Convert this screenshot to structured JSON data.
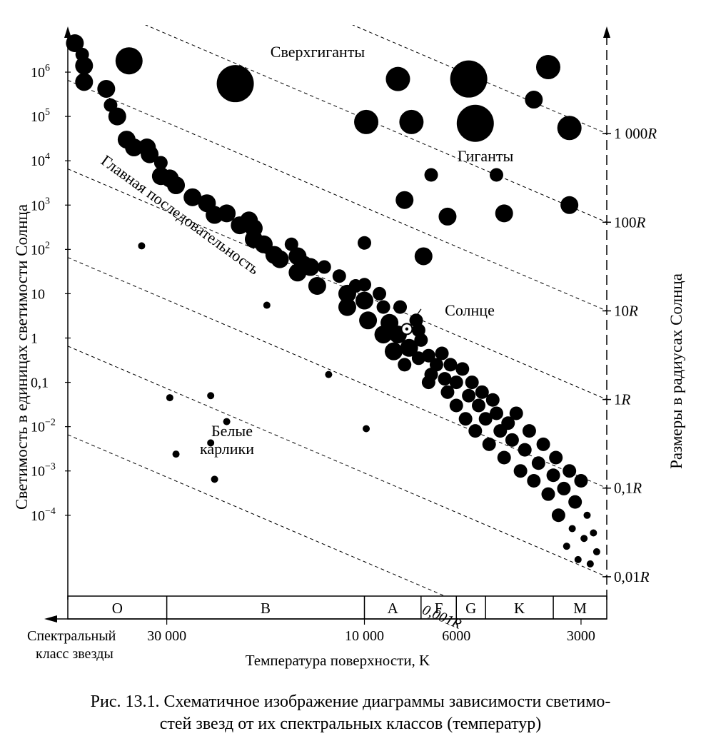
{
  "chart_data": {
    "type": "scatter",
    "ylabel": "Светимость в единицах светимости Солнца",
    "ylabel_right": "Размеры в радиусах Солнца",
    "xlabel": "Температура поверхности, K",
    "spectral_label_line1": "Спектральный",
    "spectral_label_line2": "класс звезды",
    "x_scale": "log, decreasing",
    "y_scale": "log",
    "xlim": [
      52000,
      2600
    ],
    "ylim": [
      1.5e-06,
      8000000
    ],
    "y_ticks": [
      {
        "value": 1000000,
        "label": "10",
        "sup": "6"
      },
      {
        "value": 100000,
        "label": "10",
        "sup": "5"
      },
      {
        "value": 10000,
        "label": "10",
        "sup": "4"
      },
      {
        "value": 1000,
        "label": "10",
        "sup": "3"
      },
      {
        "value": 100,
        "label": "10",
        "sup": "2"
      },
      {
        "value": 10,
        "label": "10",
        "sup": ""
      },
      {
        "value": 1,
        "label": "1",
        "sup": ""
      },
      {
        "value": 0.1,
        "label": "0,1",
        "sup": ""
      },
      {
        "value": 0.01,
        "label": "10",
        "sup": "−2"
      },
      {
        "value": 0.001,
        "label": "10",
        "sup": "−3"
      },
      {
        "value": 0.0001,
        "label": "10",
        "sup": "−4"
      }
    ],
    "x_ticks": [
      {
        "value": 30000,
        "label": "30 000"
      },
      {
        "value": 10000,
        "label": "10 000"
      },
      {
        "value": 6000,
        "label": "6000"
      },
      {
        "value": 3000,
        "label": "3000"
      }
    ],
    "spectral_classes": [
      {
        "label": "O",
        "from": 52000,
        "to": 30000
      },
      {
        "label": "B",
        "from": 30000,
        "to": 10000
      },
      {
        "label": "A",
        "from": 10000,
        "to": 7300
      },
      {
        "label": "F",
        "from": 7300,
        "to": 6000
      },
      {
        "label": "G",
        "from": 6000,
        "to": 5100
      },
      {
        "label": "K",
        "from": 5100,
        "to": 3500
      },
      {
        "label": "M",
        "from": 3500,
        "to": 2600
      }
    ],
    "radius_lines": [
      {
        "label": "1 000R",
        "radius": 1000
      },
      {
        "label": "100R",
        "radius": 100
      },
      {
        "label": "10R",
        "radius": 10
      },
      {
        "label": "1R",
        "radius": 1
      },
      {
        "label": "0,1R",
        "radius": 0.1
      },
      {
        "label": "0,01R",
        "radius": 0.01
      },
      {
        "label": "0,001R",
        "radius": 0.001
      }
    ],
    "region_labels": {
      "supergiants": "Сверхгиганты",
      "giants": "Гиганты",
      "main_sequence": "Главная последовательность",
      "white_dwarfs_line1": "Белые",
      "white_dwarfs_line2": "карлики",
      "sun": "Солнце"
    },
    "sun": {
      "T": 7900,
      "L": 1.6
    },
    "series": [
      {
        "name": "Сверхгиганты",
        "points": [
          {
            "T": 37000,
            "L": 1800000,
            "size": "xl"
          },
          {
            "T": 20500,
            "L": 550000,
            "size": "xxl"
          },
          {
            "T": 8300,
            "L": 700000,
            "size": "l"
          },
          {
            "T": 5600,
            "L": 700000,
            "size": "xxl"
          },
          {
            "T": 3600,
            "L": 1300000,
            "size": "l"
          },
          {
            "T": 9900,
            "L": 75000,
            "size": "l"
          },
          {
            "T": 7700,
            "L": 75000,
            "size": "l"
          },
          {
            "T": 5400,
            "L": 70000,
            "size": "xxl"
          },
          {
            "T": 3900,
            "L": 240000,
            "size": "m"
          },
          {
            "T": 3200,
            "L": 55000,
            "size": "l"
          }
        ]
      },
      {
        "name": "Гиганты",
        "points": [
          {
            "T": 6900,
            "L": 4800,
            "size": "s"
          },
          {
            "T": 4800,
            "L": 4800,
            "size": "s"
          },
          {
            "T": 8000,
            "L": 1300,
            "size": "m"
          },
          {
            "T": 6300,
            "L": 550,
            "size": "m"
          },
          {
            "T": 4600,
            "L": 650,
            "size": "m"
          },
          {
            "T": 3200,
            "L": 1000,
            "size": "m"
          },
          {
            "T": 10000,
            "L": 140,
            "size": "s"
          },
          {
            "T": 7200,
            "L": 70,
            "size": "m"
          }
        ]
      },
      {
        "name": "Главная последовательность",
        "points": [
          {
            "T": 50000,
            "L": 4500000,
            "size": "m"
          },
          {
            "T": 48000,
            "L": 2500000,
            "size": "s"
          },
          {
            "T": 47500,
            "L": 1400000,
            "size": "m"
          },
          {
            "T": 47500,
            "L": 600000,
            "size": "m"
          },
          {
            "T": 42000,
            "L": 420000,
            "size": "m"
          },
          {
            "T": 41000,
            "L": 180000,
            "size": "s"
          },
          {
            "T": 39500,
            "L": 100000,
            "size": "m"
          },
          {
            "T": 37500,
            "L": 30000,
            "size": "m"
          },
          {
            "T": 36000,
            "L": 20000,
            "size": "m"
          },
          {
            "T": 33500,
            "L": 20000,
            "size": "m"
          },
          {
            "T": 33000,
            "L": 14000,
            "size": "m"
          },
          {
            "T": 31000,
            "L": 9000,
            "size": "s"
          },
          {
            "T": 31000,
            "L": 4500,
            "size": "m"
          },
          {
            "T": 29500,
            "L": 4000,
            "size": "m"
          },
          {
            "T": 28500,
            "L": 2800,
            "size": "m"
          },
          {
            "T": 26000,
            "L": 1500,
            "size": "m"
          },
          {
            "T": 24000,
            "L": 1100,
            "size": "m"
          },
          {
            "T": 23000,
            "L": 600,
            "size": "m"
          },
          {
            "T": 21500,
            "L": 650,
            "size": "m"
          },
          {
            "T": 20000,
            "L": 350,
            "size": "m"
          },
          {
            "T": 19000,
            "L": 450,
            "size": "m"
          },
          {
            "T": 18500,
            "L": 300,
            "size": "m"
          },
          {
            "T": 18500,
            "L": 170,
            "size": "m"
          },
          {
            "T": 17500,
            "L": 130,
            "size": "m"
          },
          {
            "T": 16500,
            "L": 75,
            "size": "m"
          },
          {
            "T": 16000,
            "L": 60,
            "size": "m"
          },
          {
            "T": 15000,
            "L": 130,
            "size": "s"
          },
          {
            "T": 14500,
            "L": 70,
            "size": "m"
          },
          {
            "T": 14500,
            "L": 30,
            "size": "m"
          },
          {
            "T": 14000,
            "L": 45,
            "size": "m"
          },
          {
            "T": 13500,
            "L": 40,
            "size": "m"
          },
          {
            "T": 13000,
            "L": 15,
            "size": "m"
          },
          {
            "T": 12500,
            "L": 40,
            "size": "s"
          },
          {
            "T": 11500,
            "L": 25,
            "size": "s"
          },
          {
            "T": 11000,
            "L": 10,
            "size": "m"
          },
          {
            "T": 11000,
            "L": 5,
            "size": "m"
          },
          {
            "T": 10500,
            "L": 15,
            "size": "s"
          },
          {
            "T": 10000,
            "L": 16,
            "size": "s"
          },
          {
            "T": 10000,
            "L": 7,
            "size": "m"
          },
          {
            "T": 9800,
            "L": 2.5,
            "size": "m"
          },
          {
            "T": 9200,
            "L": 10,
            "size": "s"
          },
          {
            "T": 9000,
            "L": 5,
            "size": "s"
          },
          {
            "T": 9000,
            "L": 1.2,
            "size": "m"
          },
          {
            "T": 8700,
            "L": 2.2,
            "size": "m"
          },
          {
            "T": 8500,
            "L": 0.5,
            "size": "m"
          },
          {
            "T": 8300,
            "L": 1.2,
            "size": "m"
          },
          {
            "T": 8200,
            "L": 5,
            "size": "s"
          },
          {
            "T": 8000,
            "L": 0.25,
            "size": "s"
          },
          {
            "T": 7800,
            "L": 0.6,
            "size": "m"
          },
          {
            "T": 7500,
            "L": 2.5,
            "size": "s"
          },
          {
            "T": 7400,
            "L": 1.5,
            "size": "s"
          },
          {
            "T": 7400,
            "L": 0.35,
            "size": "s"
          },
          {
            "T": 7300,
            "L": 0.9,
            "size": "s"
          },
          {
            "T": 7000,
            "L": 0.4,
            "size": "s"
          },
          {
            "T": 7000,
            "L": 0.1,
            "size": "s"
          },
          {
            "T": 6900,
            "L": 0.15,
            "size": "s"
          },
          {
            "T": 6700,
            "L": 0.25,
            "size": "s"
          },
          {
            "T": 6500,
            "L": 0.45,
            "size": "s"
          },
          {
            "T": 6400,
            "L": 0.12,
            "size": "s"
          },
          {
            "T": 6300,
            "L": 0.06,
            "size": "s"
          },
          {
            "T": 6200,
            "L": 0.25,
            "size": "s"
          },
          {
            "T": 6000,
            "L": 0.03,
            "size": "s"
          },
          {
            "T": 6000,
            "L": 0.1,
            "size": "s"
          },
          {
            "T": 5800,
            "L": 0.2,
            "size": "s"
          },
          {
            "T": 5700,
            "L": 0.015,
            "size": "s"
          },
          {
            "T": 5600,
            "L": 0.05,
            "size": "s"
          },
          {
            "T": 5500,
            "L": 0.1,
            "size": "s"
          },
          {
            "T": 5400,
            "L": 0.008,
            "size": "s"
          },
          {
            "T": 5300,
            "L": 0.03,
            "size": "s"
          },
          {
            "T": 5200,
            "L": 0.06,
            "size": "s"
          },
          {
            "T": 5100,
            "L": 0.015,
            "size": "s"
          },
          {
            "T": 5000,
            "L": 0.004,
            "size": "s"
          },
          {
            "T": 4900,
            "L": 0.04,
            "size": "s"
          },
          {
            "T": 4800,
            "L": 0.02,
            "size": "s"
          },
          {
            "T": 4700,
            "L": 0.008,
            "size": "s"
          },
          {
            "T": 4600,
            "L": 0.002,
            "size": "s"
          },
          {
            "T": 4500,
            "L": 0.012,
            "size": "s"
          },
          {
            "T": 4400,
            "L": 0.005,
            "size": "s"
          },
          {
            "T": 4300,
            "L": 0.02,
            "size": "s"
          },
          {
            "T": 4200,
            "L": 0.001,
            "size": "s"
          },
          {
            "T": 4100,
            "L": 0.003,
            "size": "s"
          },
          {
            "T": 4000,
            "L": 0.008,
            "size": "s"
          },
          {
            "T": 3900,
            "L": 0.0006,
            "size": "s"
          },
          {
            "T": 3800,
            "L": 0.0015,
            "size": "s"
          },
          {
            "T": 3700,
            "L": 0.004,
            "size": "s"
          },
          {
            "T": 3600,
            "L": 0.0003,
            "size": "s"
          },
          {
            "T": 3500,
            "L": 0.0008,
            "size": "s"
          },
          {
            "T": 3450,
            "L": 0.002,
            "size": "s"
          },
          {
            "T": 3400,
            "L": 0.0001,
            "size": "s"
          },
          {
            "T": 3300,
            "L": 0.0004,
            "size": "s"
          },
          {
            "T": 3250,
            "L": 2e-05,
            "size": "xs"
          },
          {
            "T": 3200,
            "L": 0.001,
            "size": "s"
          },
          {
            "T": 3150,
            "L": 5e-05,
            "size": "xs"
          },
          {
            "T": 3100,
            "L": 0.0002,
            "size": "s"
          },
          {
            "T": 3050,
            "L": 1e-05,
            "size": "xs"
          },
          {
            "T": 3000,
            "L": 0.0006,
            "size": "s"
          },
          {
            "T": 2950,
            "L": 3e-05,
            "size": "xs"
          },
          {
            "T": 2900,
            "L": 0.0001,
            "size": "xs"
          },
          {
            "T": 2850,
            "L": 8e-06,
            "size": "xs"
          },
          {
            "T": 2800,
            "L": 4e-05,
            "size": "xs"
          },
          {
            "T": 2750,
            "L": 1.5e-05,
            "size": "xs"
          }
        ]
      },
      {
        "name": "Белые карлики",
        "points": [
          {
            "T": 34500,
            "L": 120,
            "size": "xs"
          },
          {
            "T": 17200,
            "L": 5.5,
            "size": "xs"
          },
          {
            "T": 12200,
            "L": 0.15,
            "size": "xs"
          },
          {
            "T": 9900,
            "L": 0.009,
            "size": "xs"
          },
          {
            "T": 29500,
            "L": 0.045,
            "size": "xs"
          },
          {
            "T": 23500,
            "L": 0.05,
            "size": "xs"
          },
          {
            "T": 21500,
            "L": 0.013,
            "size": "xs"
          },
          {
            "T": 28500,
            "L": 0.0024,
            "size": "xs"
          },
          {
            "T": 23500,
            "L": 0.0043,
            "size": "xs"
          },
          {
            "T": 23000,
            "L": 0.00065,
            "size": "xs"
          }
        ]
      }
    ]
  },
  "caption": {
    "line1": "Рис. 13.1. Схематичное изображение диаграммы зависимости светимо-",
    "line2": "стей звезд от их спектральных классов (температур)"
  }
}
